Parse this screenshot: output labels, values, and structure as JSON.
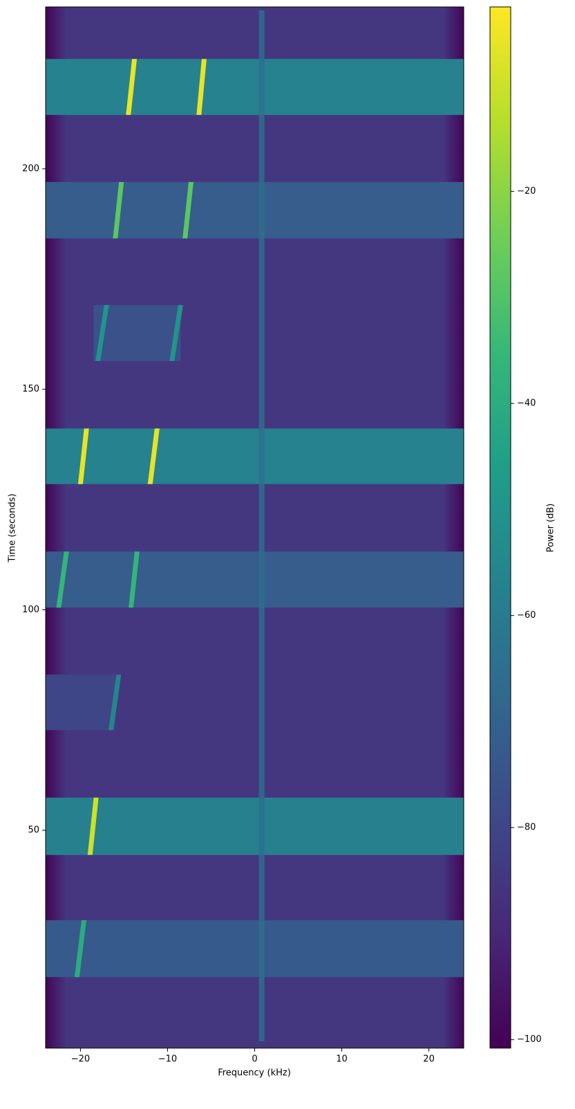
{
  "chart_data": {
    "type": "spectrogram",
    "x_label": "Frequency (kHz)",
    "y_label": "Time (seconds)",
    "colorbar_label": "Power (dB)",
    "xlim": [
      -24,
      24
    ],
    "ylim": [
      0.6,
      236.7
    ],
    "clim": [
      -100.8,
      -2.6
    ],
    "xticks": [
      {
        "value": -20,
        "label": "−20"
      },
      {
        "value": -10,
        "label": "−10"
      },
      0,
      10,
      20
    ],
    "yticks": [
      50,
      100,
      150,
      200
    ],
    "cticks": [
      {
        "value": -100,
        "label": "−100"
      },
      {
        "value": -80,
        "label": "−80"
      },
      {
        "value": -60,
        "label": "−60"
      },
      {
        "value": -40,
        "label": "−40"
      },
      {
        "value": -20,
        "label": "−20"
      }
    ],
    "colormap": [
      "#440154",
      "#482878",
      "#3e4989",
      "#31688e",
      "#26828e",
      "#1f9e89",
      "#35b779",
      "#6ece58",
      "#b5de2b",
      "#fde725"
    ],
    "background_power": -85,
    "edge_power": -100,
    "carrier": {
      "frequency": 0.8,
      "power": -65
    },
    "bursts": [
      {
        "t": [
          212.2,
          224.9
        ],
        "band": [
          -24,
          24
        ],
        "band_power": -57,
        "chirps": [
          [
            -14.5,
            -13.8
          ],
          [
            -6.4,
            -5.8
          ]
        ],
        "peak_power": -6
      },
      {
        "t": [
          184.2,
          197.0
        ],
        "band": [
          -24,
          24
        ],
        "band_power": -72,
        "chirps": [
          [
            -16,
            -15.3
          ],
          [
            -8,
            -7.3
          ]
        ],
        "peak_power": -28
      },
      {
        "t": [
          156.4,
          169.1
        ],
        "band": [
          -18.5,
          -8.5
        ],
        "band_power": -76,
        "chirps": [
          [
            -18,
            -17
          ],
          [
            -9.5,
            -8.5
          ]
        ],
        "peak_power": -50
      },
      {
        "t": [
          128.5,
          141.1
        ],
        "band": [
          -24,
          24
        ],
        "band_power": -57,
        "chirps": [
          [
            -20,
            -19.3
          ],
          [
            -12,
            -11.2
          ]
        ],
        "peak_power": -6
      },
      {
        "t": [
          100.5,
          113.2
        ],
        "band": [
          -24,
          24
        ],
        "band_power": -72,
        "chirps": [
          [
            -22.5,
            -21.6
          ],
          [
            -14.2,
            -13.5
          ]
        ],
        "peak_power": -36
      },
      {
        "t": [
          72.7,
          85.3
        ],
        "band": [
          -24,
          -16
        ],
        "band_power": -80,
        "chirps": [
          [
            -16.5,
            -15.6
          ]
        ],
        "peak_power": -56
      },
      {
        "t": [
          44.4,
          57.4
        ],
        "band": [
          -24,
          24
        ],
        "band_power": -58,
        "chirps": [
          [
            -18.9,
            -18.2
          ]
        ],
        "peak_power": -10
      },
      {
        "t": [
          16.7,
          29.6
        ],
        "band": [
          -24,
          24
        ],
        "band_power": -73,
        "chirps": [
          [
            -20.4,
            -19.6
          ]
        ],
        "peak_power": -40
      }
    ]
  }
}
